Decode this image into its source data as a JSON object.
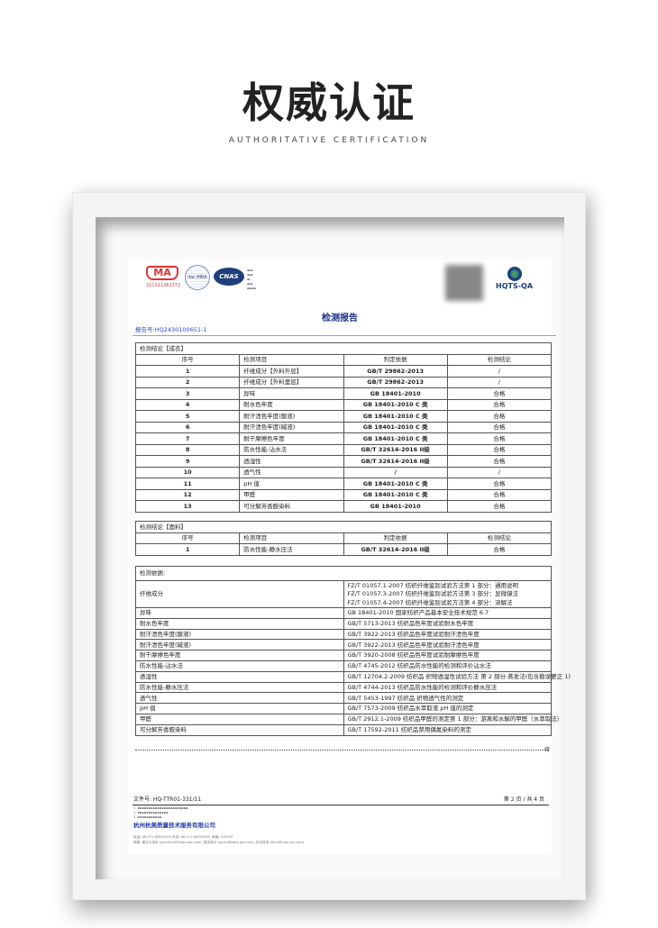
{
  "header": {
    "title": "权威认证",
    "subtitle": "AUTHORITATIVE CERTIFICATION"
  },
  "report": {
    "logos": {
      "cma": "MA",
      "cma_number": "221111261372",
      "ilac": "ilac-MRA",
      "cnas": "CNAS",
      "hqts": "HQTS-QA"
    },
    "title": "检测报告",
    "report_no": "报告号:HQ2430100651-1",
    "table1": {
      "caption": "检测结论【成衣】",
      "headers": [
        "序号",
        "检测项目",
        "判定依据",
        "检测结论"
      ],
      "rows": [
        [
          "1",
          "纤维成分【外料外层】",
          "GB/T 29862-2013",
          "/"
        ],
        [
          "2",
          "纤维成分【外料里层】",
          "GB/T 29862-2013",
          "/"
        ],
        [
          "3",
          "异味",
          "GB 18401-2010",
          "合格"
        ],
        [
          "4",
          "耐水色牢度",
          "GB 18401-2010 C 类",
          "合格"
        ],
        [
          "5",
          "耐汗渍色牢度(酸液)",
          "GB 18401-2010 C 类",
          "合格"
        ],
        [
          "6",
          "耐汗渍色牢度(碱液)",
          "GB 18401-2010 C 类",
          "合格"
        ],
        [
          "7",
          "耐干摩擦色牢度",
          "GB 18401-2010 C 类",
          "合格"
        ],
        [
          "8",
          "防水性能-沾水法",
          "GB/T 32614-2016 II级",
          "合格"
        ],
        [
          "9",
          "透湿性",
          "GB/T 32614-2016 II级",
          "合格"
        ],
        [
          "10",
          "透气性",
          "/",
          "/"
        ],
        [
          "11",
          "pH 值",
          "GB 18401-2010 C 类",
          "合格"
        ],
        [
          "12",
          "甲醛",
          "GB 18401-2010 C 类",
          "合格"
        ],
        [
          "13",
          "可分解芳香胺染料",
          "GB 18401-2010",
          "合格"
        ]
      ]
    },
    "table2": {
      "caption": "检测结论【面料】",
      "headers": [
        "序号",
        "检测项目",
        "判定依据",
        "检测结论"
      ],
      "rows": [
        [
          "1",
          "防水性能-静水压法",
          "GB/T 32614-2016 II级",
          "合格"
        ]
      ]
    },
    "table3": {
      "caption": "检测依据:",
      "rows": [
        [
          "纤维成分",
          "FZ/T 01057.1-2007 纺织纤维鉴别试验方法第 1 部分：通用说明"
        ],
        [
          "",
          "FZ/T 01057.3-2007 纺织纤维鉴别试验方法第 3 部分：显微镜法"
        ],
        [
          "",
          "FZ/T 01057.4-2007 纺织纤维鉴别试验方法第 4 部分：溶解法"
        ],
        [
          "异味",
          "GB 18401-2010 国家纺织产品基本安全技术规范 6.7"
        ],
        [
          "耐水色牢度",
          "GB/T 5713-2013 纺织品色牢度试验耐水色牢度"
        ],
        [
          "耐汗渍色牢度(酸液)",
          "GB/T 3922-2013 纺织品色牢度试验耐汗渍色牢度"
        ],
        [
          "耐汗渍色牢度(碱液)",
          "GB/T 3922-2013 纺织品色牢度试验耐汗渍色牢度"
        ],
        [
          "耐干摩擦色牢度",
          "GB/T 3920-2008 纺织品色牢度试验耐摩擦色牢度"
        ],
        [
          "防水性能-沾水法",
          "GB/T 4745-2012 纺织品防水性能的检测和评价沾水法"
        ],
        [
          "透湿性",
          "GB/T 12704.2-2009 纺织品 织物透湿性试验方法 第 2 部分:蒸发法(包含勘误更正 1)"
        ],
        [
          "防水性能-静水压法",
          "GB/T 4744-2013 纺织品防水性能的检测和评价静水压法"
        ],
        [
          "透气性",
          "GB/T 5453-1997 纺织品 织物透气性的测定"
        ],
        [
          "pH 值",
          "GB/T 7573-2009 纺织品水萃取液 pH 值的测定"
        ],
        [
          "甲醛",
          "GB/T 2912.1-2009 纺织品甲醛的测定第 1 部分：游离和水解的甲醛（水萃取法）"
        ],
        [
          "可分解芳香胺染料",
          "GB/T 17592-2011 纺织品禁用偶氮染料的测定"
        ]
      ]
    },
    "continued": "待",
    "doc_no": "文件号: HQ-TTR01-331/11",
    "page": "第 2 页 / 共 4 页",
    "company": "杭州杭美质量技术服务有限公司",
    "email_line": "邮箱: 建议与投诉 (comment@hqts-qai.com), 报告核对 (query@hqts-qai.com), 技术咨询 (tech@hqts-qai.com)",
    "phone_line": "电话: 86-571-89095169 传真: 86-571-89095200, 邮编: 310030"
  },
  "colors": {
    "brand_blue": "#1b2f8c",
    "cma_red": "#d33333"
  }
}
